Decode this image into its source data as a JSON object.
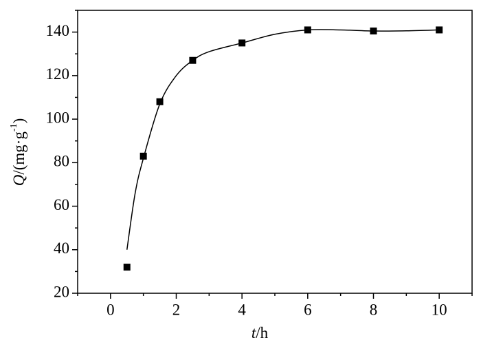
{
  "chart_data": {
    "type": "scatter",
    "x_label": {
      "symbol": "t",
      "unit": "/h"
    },
    "y_label": {
      "symbol": "Q",
      "unit": "/(mg·g",
      "exponent": "-1",
      "close": ")"
    },
    "xlim": [
      -1,
      11
    ],
    "xticks": [
      0,
      2,
      4,
      6,
      8,
      10
    ],
    "xminorticks": [
      -1,
      1,
      3,
      5,
      7,
      9,
      11
    ],
    "ylim": [
      20,
      150
    ],
    "yticks": [
      20,
      40,
      60,
      80,
      100,
      120,
      140
    ],
    "yminorticks": [
      30,
      50,
      70,
      90,
      110,
      130,
      150
    ],
    "color": "#000000",
    "series": [
      {
        "style": "markers",
        "x": [
          0.5,
          1,
          1.5,
          2.5,
          4,
          6,
          8,
          10
        ],
        "values": [
          32,
          83,
          108,
          127,
          135,
          141,
          140.5,
          141
        ]
      },
      {
        "style": "line",
        "x": [
          0.5,
          0.75,
          1,
          1.5,
          2,
          2.5,
          3,
          4,
          5,
          6,
          7,
          8,
          9,
          10
        ],
        "values": [
          40,
          66,
          82,
          107,
          120,
          127,
          131,
          135,
          139,
          141,
          141,
          140.5,
          140.6,
          141
        ]
      }
    ]
  }
}
